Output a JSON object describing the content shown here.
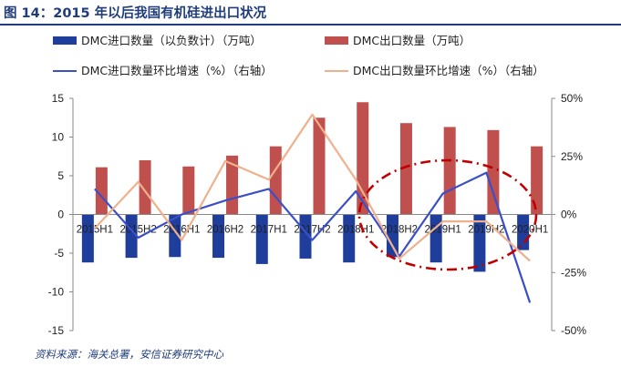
{
  "title": "图 14：2015 年以后我国有机硅进出口状况",
  "source": "资料来源：海关总署，安信证券研究中心",
  "chart_data": {
    "type": "bar",
    "categories": [
      "2015H1",
      "2015H2",
      "2016H1",
      "2016H2",
      "2017H1",
      "2017H2",
      "2018H1",
      "2018H2",
      "2019H1",
      "2019H2",
      "2020H1"
    ],
    "series": [
      {
        "name": "DMC进口数量（以负数计）（万吨）",
        "kind": "bar",
        "axis": "left",
        "color": "#1f3d9a",
        "values": [
          -6.2,
          -5.6,
          -5.5,
          -5.6,
          -6.4,
          -5.7,
          -6.2,
          -5.5,
          -6.2,
          -7.4,
          -4.6
        ]
      },
      {
        "name": "DMC出口数量（万吨）",
        "kind": "bar",
        "axis": "left",
        "color": "#c0504d",
        "values": [
          6.1,
          7.0,
          6.2,
          7.6,
          8.8,
          12.5,
          14.5,
          11.8,
          11.3,
          10.9,
          8.8
        ]
      },
      {
        "name": "DMC进口数量环比增速（%）（右轴）",
        "kind": "line",
        "axis": "right",
        "color": "#3a4fc9",
        "values": [
          11,
          -10,
          0,
          6,
          11,
          -11,
          10,
          -18,
          9,
          18,
          -38
        ]
      },
      {
        "name": "DMC出口数量环比增速（%）（右轴）",
        "kind": "line",
        "axis": "right",
        "color": "#f0b08c",
        "values": [
          -6,
          14,
          -11,
          23,
          15,
          43,
          15,
          -19,
          -3,
          -3,
          -20
        ]
      }
    ],
    "ylim": [
      -15,
      15
    ],
    "yticks": [
      -15,
      -10,
      -5,
      0,
      5,
      10,
      15
    ],
    "y2lim": [
      -50,
      50
    ],
    "y2ticks": [
      "50%",
      "25%",
      "0%",
      "-25%",
      "-50%"
    ],
    "y2tick_values": [
      50,
      25,
      0,
      -25,
      -50
    ],
    "legend_position": "top",
    "annotation": "red dash-dot ellipse highlighting 2018H2–2019H2"
  },
  "colors": {
    "import_bar": "#1f3d9a",
    "export_bar": "#c0504d",
    "import_line": "#3a4fc9",
    "export_line": "#f0b08c",
    "annotation": "#c00000",
    "title": "#1f3d7a"
  }
}
